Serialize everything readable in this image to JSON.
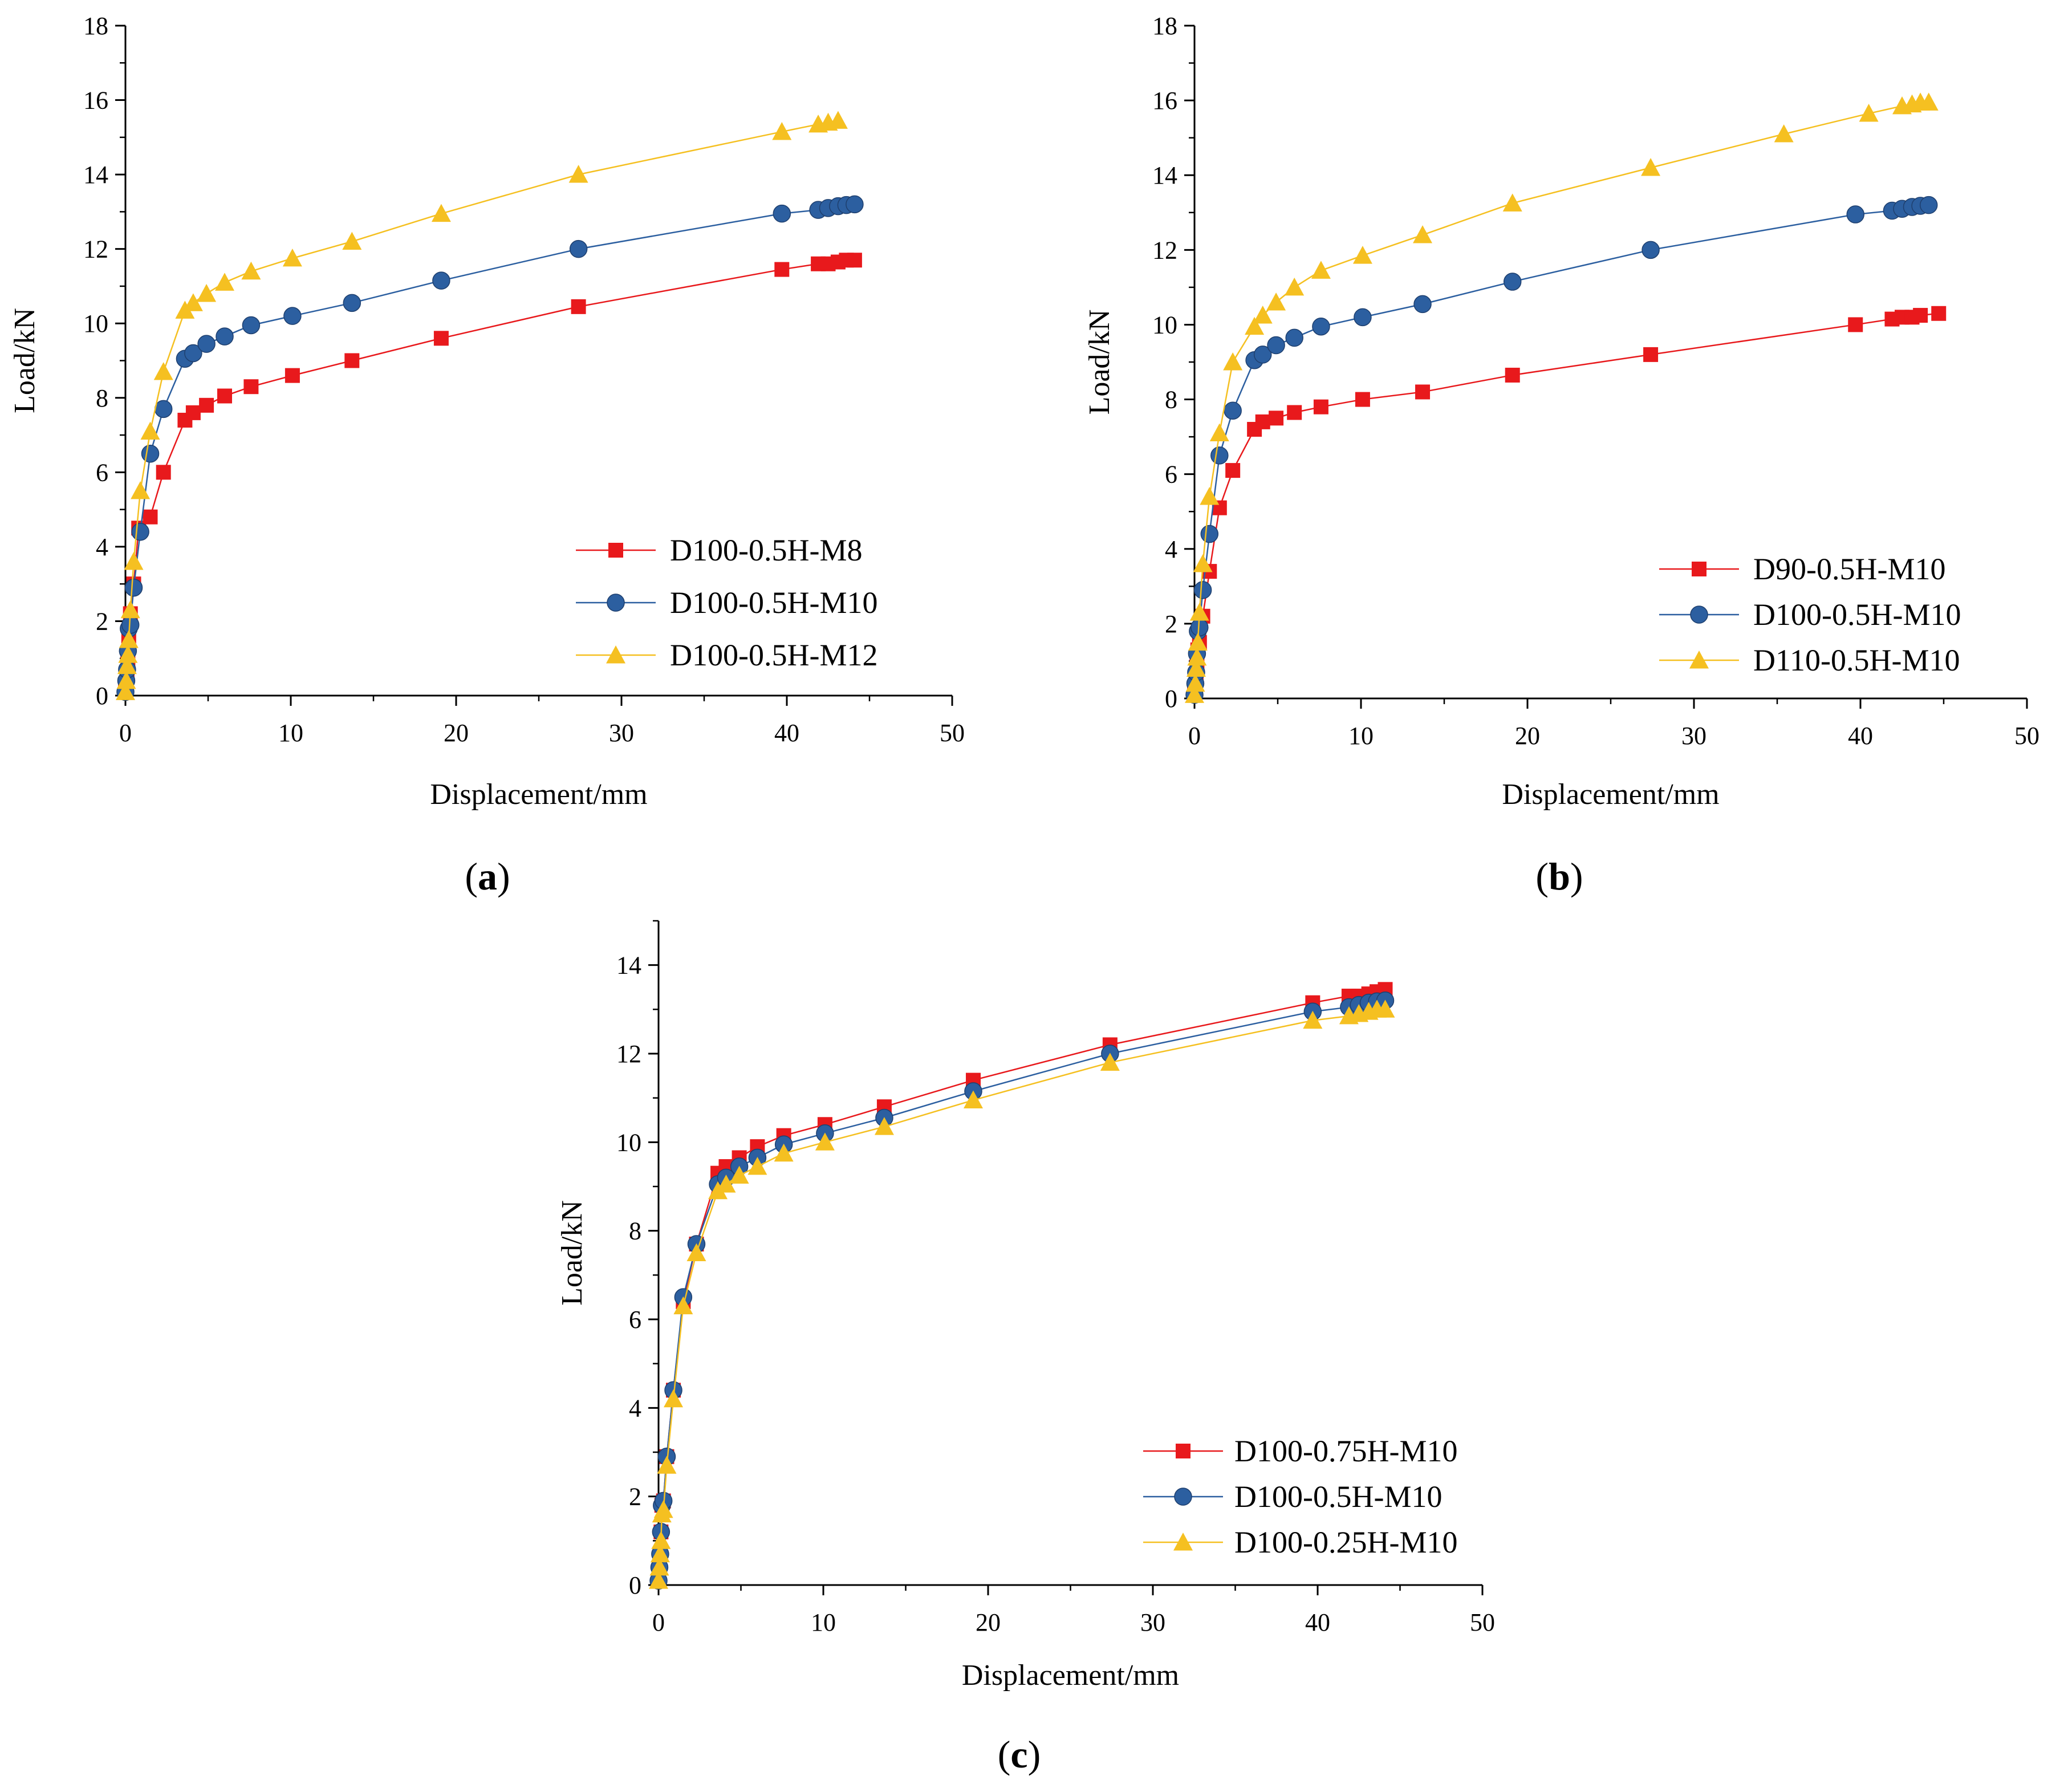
{
  "chart_data": [
    {
      "type": "line",
      "panel_label": "a",
      "xlabel": "Displacement/mm",
      "ylabel": "Load/kN",
      "xlim": [
        0,
        50
      ],
      "ylim": [
        0,
        18
      ],
      "xticks": [
        0,
        10,
        20,
        30,
        40,
        50
      ],
      "yticks": [
        0,
        2,
        4,
        6,
        8,
        10,
        12,
        14,
        16,
        18
      ],
      "grid": false,
      "legend": "bottom-right",
      "series": [
        {
          "name": "D100-0.5H-M8",
          "color": "#e8191c",
          "marker": "square",
          "x": [
            0,
            0.05,
            0.1,
            0.15,
            0.2,
            0.3,
            0.5,
            0.8,
            1.5,
            2.3,
            3.6,
            4.1,
            4.9,
            6,
            7.6,
            10.1,
            13.7,
            19.1,
            27.4,
            39.7,
            41.9,
            42.5,
            43.1,
            43.6,
            44.1
          ],
          "y": [
            0.1,
            0.3,
            0.6,
            1.0,
            1.6,
            2.2,
            3.0,
            4.5,
            4.8,
            6.0,
            7.4,
            7.6,
            7.8,
            8.05,
            8.3,
            8.6,
            9.0,
            9.6,
            10.45,
            11.45,
            11.6,
            11.6,
            11.65,
            11.7,
            11.7
          ]
        },
        {
          "name": "D100-0.5H-M10",
          "color": "#2c5fa0",
          "marker": "circle",
          "x": [
            0,
            0.05,
            0.1,
            0.15,
            0.2,
            0.3,
            0.5,
            0.9,
            1.5,
            2.3,
            3.6,
            4.1,
            4.9,
            6,
            7.6,
            10.1,
            13.7,
            19.1,
            27.4,
            39.7,
            41.9,
            42.5,
            43.1,
            43.6,
            44.1
          ],
          "y": [
            0.1,
            0.4,
            0.7,
            1.2,
            1.8,
            1.9,
            2.9,
            4.4,
            6.5,
            7.7,
            9.05,
            9.2,
            9.45,
            9.65,
            9.95,
            10.2,
            10.55,
            11.15,
            12.0,
            12.95,
            13.05,
            13.1,
            13.15,
            13.18,
            13.2
          ]
        },
        {
          "name": "D100-0.5H-M12",
          "color": "#f5c021",
          "marker": "triangle",
          "x": [
            0,
            0.05,
            0.1,
            0.15,
            0.2,
            0.3,
            0.5,
            0.9,
            1.5,
            2.3,
            3.6,
            4.1,
            4.9,
            6,
            7.6,
            10.1,
            13.7,
            19.1,
            27.4,
            39.7,
            41.9,
            42.5,
            43.1
          ],
          "y": [
            0.1,
            0.4,
            0.8,
            1.1,
            1.5,
            2.3,
            3.6,
            5.5,
            7.1,
            8.7,
            10.35,
            10.55,
            10.8,
            11.1,
            11.4,
            11.75,
            12.2,
            12.95,
            14.0,
            15.15,
            15.35,
            15.4,
            15.45
          ]
        }
      ]
    },
    {
      "type": "line",
      "panel_label": "b",
      "xlabel": "Displacement/mm",
      "ylabel": "Load/kN",
      "xlim": [
        0,
        50
      ],
      "ylim": [
        0,
        18
      ],
      "xticks": [
        0,
        10,
        20,
        30,
        40,
        50
      ],
      "yticks": [
        0,
        2,
        4,
        6,
        8,
        10,
        12,
        14,
        16,
        18
      ],
      "grid": false,
      "legend": "bottom-right",
      "series": [
        {
          "name": "D90-0.5H-M10",
          "color": "#e8191c",
          "marker": "square",
          "x": [
            0,
            0.05,
            0.1,
            0.15,
            0.2,
            0.3,
            0.5,
            0.9,
            1.5,
            2.3,
            3.6,
            4.1,
            4.9,
            6,
            7.6,
            10.1,
            13.7,
            19.1,
            27.4,
            39.7,
            41.9,
            42.5,
            43.1,
            43.6,
            44.7
          ],
          "y": [
            0.1,
            0.3,
            0.6,
            0.9,
            1.3,
            1.5,
            2.2,
            3.4,
            5.1,
            6.1,
            7.2,
            7.4,
            7.5,
            7.65,
            7.8,
            8.0,
            8.2,
            8.65,
            9.2,
            10.0,
            10.15,
            10.2,
            10.2,
            10.25,
            10.3
          ]
        },
        {
          "name": "D100-0.5H-M10",
          "color": "#2c5fa0",
          "marker": "circle",
          "x": [
            0,
            0.05,
            0.1,
            0.15,
            0.2,
            0.3,
            0.5,
            0.9,
            1.5,
            2.3,
            3.6,
            4.1,
            4.9,
            6,
            7.6,
            10.1,
            13.7,
            19.1,
            27.4,
            39.7,
            41.9,
            42.5,
            43.1,
            43.6,
            44.1
          ],
          "y": [
            0.1,
            0.4,
            0.7,
            1.2,
            1.8,
            1.9,
            2.9,
            4.4,
            6.5,
            7.7,
            9.05,
            9.2,
            9.45,
            9.65,
            9.95,
            10.2,
            10.55,
            11.15,
            12.0,
            12.95,
            13.05,
            13.1,
            13.15,
            13.18,
            13.2
          ]
        },
        {
          "name": "D110-0.5H-M10",
          "color": "#f5c021",
          "marker": "triangle",
          "x": [
            0,
            0.05,
            0.1,
            0.15,
            0.2,
            0.3,
            0.5,
            0.9,
            1.5,
            2.3,
            3.6,
            4.1,
            4.9,
            6,
            7.6,
            10.1,
            13.7,
            19.1,
            27.4,
            35.4,
            40.5,
            42.5,
            43.1,
            43.6,
            44.1
          ],
          "y": [
            0.1,
            0.4,
            0.8,
            1.1,
            1.5,
            2.3,
            3.6,
            5.4,
            7.1,
            9.0,
            9.95,
            10.25,
            10.6,
            11.0,
            11.45,
            11.85,
            12.4,
            13.25,
            14.2,
            15.1,
            15.65,
            15.85,
            15.9,
            15.95,
            15.95
          ]
        }
      ]
    },
    {
      "type": "line",
      "panel_label": "c",
      "xlabel": "Displacement/mm",
      "ylabel": "Load/kN",
      "xlim": [
        0,
        50
      ],
      "ylim": [
        0,
        15
      ],
      "xticks": [
        0,
        10,
        20,
        30,
        40,
        50
      ],
      "yticks": [
        0,
        2,
        4,
        6,
        8,
        10,
        12,
        14
      ],
      "grid": false,
      "legend": "bottom-right",
      "series": [
        {
          "name": "D100-0.75H-M10",
          "color": "#e8191c",
          "marker": "square",
          "x": [
            0,
            0.05,
            0.1,
            0.15,
            0.2,
            0.3,
            0.5,
            0.9,
            1.5,
            2.3,
            3.6,
            4.1,
            4.9,
            6,
            7.6,
            10.1,
            13.7,
            19.1,
            27.4,
            39.7,
            41.9,
            42.5,
            43.1,
            43.6,
            44.1
          ],
          "y": [
            0.1,
            0.4,
            0.7,
            1.2,
            1.8,
            1.9,
            2.9,
            4.4,
            6.4,
            7.7,
            9.3,
            9.45,
            9.65,
            9.9,
            10.15,
            10.4,
            10.8,
            11.4,
            12.2,
            13.15,
            13.3,
            13.3,
            13.35,
            13.4,
            13.45
          ]
        },
        {
          "name": "D100-0.5H-M10",
          "color": "#2c5fa0",
          "marker": "circle",
          "x": [
            0,
            0.05,
            0.1,
            0.15,
            0.2,
            0.3,
            0.5,
            0.9,
            1.5,
            2.3,
            3.6,
            4.1,
            4.9,
            6,
            7.6,
            10.1,
            13.7,
            19.1,
            27.4,
            39.7,
            41.9,
            42.5,
            43.1,
            43.6,
            44.1
          ],
          "y": [
            0.1,
            0.4,
            0.7,
            1.2,
            1.8,
            1.9,
            2.9,
            4.4,
            6.5,
            7.7,
            9.05,
            9.2,
            9.45,
            9.65,
            9.95,
            10.2,
            10.55,
            11.15,
            12.0,
            12.95,
            13.05,
            13.1,
            13.15,
            13.18,
            13.2
          ]
        },
        {
          "name": "D100-0.25H-M10",
          "color": "#f5c021",
          "marker": "triangle",
          "x": [
            0,
            0.05,
            0.1,
            0.15,
            0.2,
            0.3,
            0.5,
            0.9,
            1.5,
            2.3,
            3.6,
            4.1,
            4.9,
            6,
            7.6,
            10.1,
            13.7,
            19.1,
            27.4,
            39.7,
            41.9,
            42.5,
            43.1,
            43.6,
            44.1
          ],
          "y": [
            0.1,
            0.4,
            0.7,
            1.0,
            1.6,
            1.7,
            2.7,
            4.2,
            6.3,
            7.5,
            8.9,
            9.05,
            9.25,
            9.45,
            9.75,
            10.0,
            10.35,
            10.95,
            11.8,
            12.75,
            12.85,
            12.9,
            12.95,
            13.0,
            13.0
          ]
        }
      ]
    }
  ]
}
